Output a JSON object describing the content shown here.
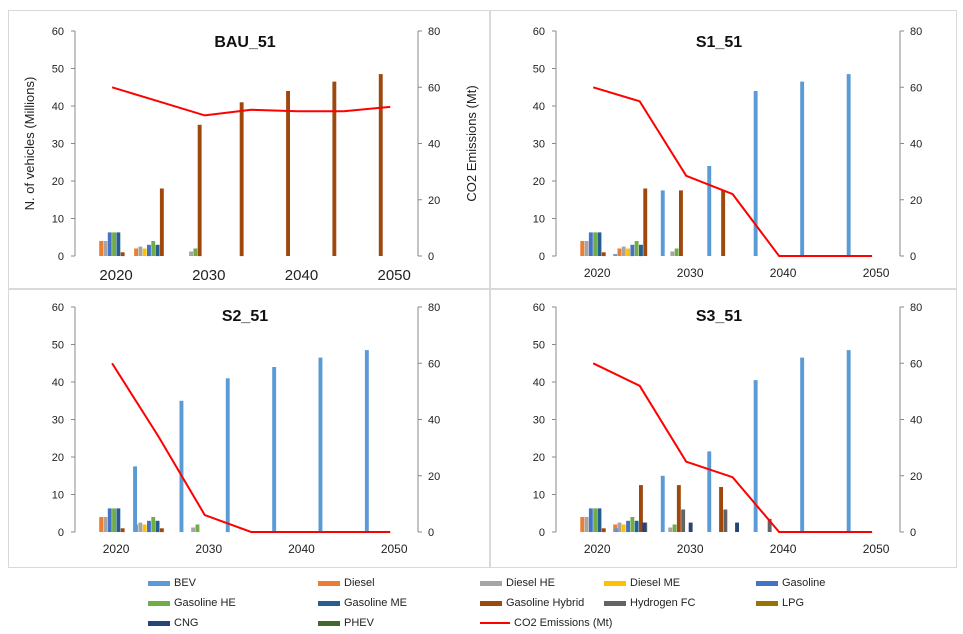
{
  "chart_data": [
    {
      "type": "bar",
      "title": "BAU_51",
      "ylabel": "N. of vehicles (Millions)",
      "y2label": "CO2 Emissions (Mt)",
      "ylim": [
        0,
        60
      ],
      "y2lim": [
        0,
        80
      ],
      "yticks": [
        "0",
        "10",
        "20",
        "30",
        "40",
        "50",
        "60"
      ],
      "y2ticks": [
        "0",
        "20",
        "40",
        "60",
        "80"
      ],
      "x_tick_labels": [
        "2020",
        "2030",
        "2040",
        "2050"
      ],
      "bars": [
        {
          "x": 2020,
          "series": "Diesel",
          "value": 4.0
        },
        {
          "x": 2020,
          "series": "Diesel HE",
          "value": 4.0
        },
        {
          "x": 2020,
          "series": "Gasoline",
          "value": 6.3
        },
        {
          "x": 2020,
          "series": "Gasoline HE",
          "value": 6.3
        },
        {
          "x": 2020,
          "series": "Gasoline ME",
          "value": 6.3
        },
        {
          "x": 2020,
          "series": "Gasoline Hybrid",
          "value": 1.0
        },
        {
          "x": 2024,
          "series": "Diesel",
          "value": 2.0
        },
        {
          "x": 2024,
          "series": "Diesel HE",
          "value": 2.5
        },
        {
          "x": 2024,
          "series": "Diesel ME",
          "value": 2.0
        },
        {
          "x": 2024,
          "series": "Gasoline",
          "value": 3.0
        },
        {
          "x": 2024,
          "series": "Gasoline HE",
          "value": 4.0
        },
        {
          "x": 2024,
          "series": "Gasoline ME",
          "value": 3.0
        },
        {
          "x": 2024,
          "series": "Gasoline Hybrid",
          "value": 18.0
        },
        {
          "x": 2029,
          "series": "Diesel HE",
          "value": 1.2
        },
        {
          "x": 2029,
          "series": "Gasoline HE",
          "value": 2.0
        },
        {
          "x": 2029,
          "series": "Gasoline Hybrid",
          "value": 35.0
        },
        {
          "x": 2034,
          "series": "Gasoline Hybrid",
          "value": 41.0
        },
        {
          "x": 2039,
          "series": "Gasoline Hybrid",
          "value": 44.0
        },
        {
          "x": 2044,
          "series": "Gasoline Hybrid",
          "value": 46.5
        },
        {
          "x": 2049,
          "series": "Gasoline Hybrid",
          "value": 48.5
        }
      ],
      "co2": [
        [
          2020,
          60
        ],
        [
          2025,
          55
        ],
        [
          2030,
          50
        ],
        [
          2035,
          52
        ],
        [
          2040,
          51.5
        ],
        [
          2045,
          51.5
        ],
        [
          2050,
          53
        ]
      ]
    },
    {
      "type": "bar",
      "title": "S1_51",
      "ylim": [
        0,
        60
      ],
      "y2lim": [
        0,
        80
      ],
      "yticks": [
        "0",
        "10",
        "20",
        "30",
        "40",
        "50",
        "60"
      ],
      "y2ticks": [
        "0",
        "20",
        "40",
        "60",
        "80"
      ],
      "x_tick_labels": [
        "2020",
        "2030",
        "2040",
        "2050"
      ],
      "bars": [
        {
          "x": 2020,
          "series": "Diesel",
          "value": 4.0
        },
        {
          "x": 2020,
          "series": "Diesel HE",
          "value": 4.0
        },
        {
          "x": 2020,
          "series": "Gasoline",
          "value": 6.3
        },
        {
          "x": 2020,
          "series": "Gasoline HE",
          "value": 6.3
        },
        {
          "x": 2020,
          "series": "Gasoline ME",
          "value": 6.3
        },
        {
          "x": 2020,
          "series": "Gasoline Hybrid",
          "value": 1.0
        },
        {
          "x": 2024,
          "series": "BEV",
          "value": 0.5
        },
        {
          "x": 2024,
          "series": "Diesel",
          "value": 2.0
        },
        {
          "x": 2024,
          "series": "Diesel HE",
          "value": 2.5
        },
        {
          "x": 2024,
          "series": "Diesel ME",
          "value": 2.0
        },
        {
          "x": 2024,
          "series": "Gasoline",
          "value": 3.0
        },
        {
          "x": 2024,
          "series": "Gasoline HE",
          "value": 4.0
        },
        {
          "x": 2024,
          "series": "Gasoline ME",
          "value": 3.0
        },
        {
          "x": 2024,
          "series": "Gasoline Hybrid",
          "value": 18.0
        },
        {
          "x": 2027.5,
          "series": "BEV",
          "value": 17.5
        },
        {
          "x": 2029,
          "series": "Diesel HE",
          "value": 1.2
        },
        {
          "x": 2029,
          "series": "Gasoline HE",
          "value": 2.0
        },
        {
          "x": 2029,
          "series": "Gasoline Hybrid",
          "value": 17.5
        },
        {
          "x": 2032.5,
          "series": "BEV",
          "value": 24.0
        },
        {
          "x": 2034,
          "series": "Gasoline Hybrid",
          "value": 17.5
        },
        {
          "x": 2037.5,
          "series": "BEV",
          "value": 44.0
        },
        {
          "x": 2042.5,
          "series": "BEV",
          "value": 46.5
        },
        {
          "x": 2047.5,
          "series": "BEV",
          "value": 48.5
        }
      ],
      "co2": [
        [
          2020,
          60
        ],
        [
          2025,
          55
        ],
        [
          2030,
          28.5
        ],
        [
          2035,
          22
        ],
        [
          2040,
          0
        ],
        [
          2045,
          0
        ],
        [
          2050,
          0
        ]
      ]
    },
    {
      "type": "bar",
      "title": "S2_51",
      "ylim": [
        0,
        60
      ],
      "y2lim": [
        0,
        80
      ],
      "yticks": [
        "0",
        "10",
        "20",
        "30",
        "40",
        "50",
        "60"
      ],
      "y2ticks": [
        "0",
        "20",
        "40",
        "60",
        "80"
      ],
      "x_tick_labels": [
        "2020",
        "2030",
        "2040",
        "2050"
      ],
      "bars": [
        {
          "x": 2020,
          "series": "Diesel",
          "value": 4.0
        },
        {
          "x": 2020,
          "series": "Diesel HE",
          "value": 4.0
        },
        {
          "x": 2020,
          "series": "Gasoline",
          "value": 6.3
        },
        {
          "x": 2020,
          "series": "Gasoline HE",
          "value": 6.3
        },
        {
          "x": 2020,
          "series": "Gasoline ME",
          "value": 6.3
        },
        {
          "x": 2020,
          "series": "Gasoline Hybrid",
          "value": 1.0
        },
        {
          "x": 2022.5,
          "series": "BEV",
          "value": 17.5
        },
        {
          "x": 2024,
          "series": "Diesel",
          "value": 2.0
        },
        {
          "x": 2024,
          "series": "Diesel HE",
          "value": 2.5
        },
        {
          "x": 2024,
          "series": "Diesel ME",
          "value": 2.0
        },
        {
          "x": 2024,
          "series": "Gasoline",
          "value": 3.0
        },
        {
          "x": 2024,
          "series": "Gasoline HE",
          "value": 4.0
        },
        {
          "x": 2024,
          "series": "Gasoline ME",
          "value": 3.0
        },
        {
          "x": 2024,
          "series": "Gasoline Hybrid",
          "value": 1.0
        },
        {
          "x": 2027.5,
          "series": "BEV",
          "value": 35.0
        },
        {
          "x": 2029,
          "series": "Diesel HE",
          "value": 1.2
        },
        {
          "x": 2029,
          "series": "Gasoline HE",
          "value": 2.0
        },
        {
          "x": 2032.5,
          "series": "BEV",
          "value": 41.0
        },
        {
          "x": 2037.5,
          "series": "BEV",
          "value": 44.0
        },
        {
          "x": 2042.5,
          "series": "BEV",
          "value": 46.5
        },
        {
          "x": 2047.5,
          "series": "BEV",
          "value": 48.5
        }
      ],
      "co2": [
        [
          2020,
          60
        ],
        [
          2025,
          34
        ],
        [
          2030,
          6
        ],
        [
          2035,
          0
        ],
        [
          2040,
          0
        ],
        [
          2045,
          0
        ],
        [
          2050,
          0
        ]
      ]
    },
    {
      "type": "bar",
      "title": "S3_51",
      "ylim": [
        0,
        60
      ],
      "y2lim": [
        0,
        80
      ],
      "yticks": [
        "0",
        "10",
        "20",
        "30",
        "40",
        "50",
        "60"
      ],
      "y2ticks": [
        "0",
        "20",
        "40",
        "60",
        "80"
      ],
      "x_tick_labels": [
        "2020",
        "2030",
        "2040",
        "2050"
      ],
      "bars": [
        {
          "x": 2020,
          "series": "Diesel",
          "value": 4.0
        },
        {
          "x": 2020,
          "series": "Diesel HE",
          "value": 4.0
        },
        {
          "x": 2020,
          "series": "Gasoline",
          "value": 6.3
        },
        {
          "x": 2020,
          "series": "Gasoline HE",
          "value": 6.3
        },
        {
          "x": 2020,
          "series": "Gasoline ME",
          "value": 6.3
        },
        {
          "x": 2020,
          "series": "Gasoline Hybrid",
          "value": 1.0
        },
        {
          "x": 2022.5,
          "series": "BEV",
          "value": 1.0
        },
        {
          "x": 2024,
          "series": "Diesel",
          "value": 2.0
        },
        {
          "x": 2024,
          "series": "Diesel HE",
          "value": 2.5
        },
        {
          "x": 2024,
          "series": "Diesel ME",
          "value": 2.0
        },
        {
          "x": 2024,
          "series": "Gasoline",
          "value": 3.0
        },
        {
          "x": 2024,
          "series": "Gasoline HE",
          "value": 4.0
        },
        {
          "x": 2024,
          "series": "Gasoline ME",
          "value": 3.0
        },
        {
          "x": 2024,
          "series": "Gasoline Hybrid",
          "value": 12.5
        },
        {
          "x": 2024,
          "series": "Hydrogen FC",
          "value": 2.5
        },
        {
          "x": 2025.5,
          "series": "CNG",
          "value": 2.5
        },
        {
          "x": 2027.5,
          "series": "BEV",
          "value": 15.0
        },
        {
          "x": 2029,
          "series": "Diesel HE",
          "value": 1.2
        },
        {
          "x": 2029,
          "series": "Gasoline HE",
          "value": 2.0
        },
        {
          "x": 2029,
          "series": "Gasoline Hybrid",
          "value": 12.5
        },
        {
          "x": 2029,
          "series": "Hydrogen FC",
          "value": 6.0
        },
        {
          "x": 2030.5,
          "series": "CNG",
          "value": 2.5
        },
        {
          "x": 2032.5,
          "series": "BEV",
          "value": 21.5
        },
        {
          "x": 2034,
          "series": "Gasoline Hybrid",
          "value": 12.0
        },
        {
          "x": 2034,
          "series": "Hydrogen FC",
          "value": 6.0
        },
        {
          "x": 2035.5,
          "series": "CNG",
          "value": 2.5
        },
        {
          "x": 2037.5,
          "series": "BEV",
          "value": 40.5
        },
        {
          "x": 2039,
          "series": "Hydrogen FC",
          "value": 3.5
        },
        {
          "x": 2042.5,
          "series": "BEV",
          "value": 46.5
        },
        {
          "x": 2047.5,
          "series": "BEV",
          "value": 48.5
        }
      ],
      "co2": [
        [
          2020,
          60
        ],
        [
          2025,
          52
        ],
        [
          2030,
          25
        ],
        [
          2035,
          19.5
        ],
        [
          2040,
          0
        ],
        [
          2045,
          0
        ],
        [
          2050,
          0
        ]
      ]
    }
  ],
  "colors": {
    "BEV": "#5b9bd5",
    "Diesel": "#ed7d31",
    "Diesel HE": "#a5a5a5",
    "Diesel ME": "#ffc000",
    "Gasoline": "#4472c4",
    "Gasoline HE": "#70ad47",
    "Gasoline ME": "#255e91",
    "Gasoline Hybrid": "#9e480e",
    "Hydrogen FC": "#636363",
    "LPG": "#997300",
    "CNG": "#264478",
    "PHEV": "#43682b",
    "CO2 Emissions (Mt)": "#ff0000"
  },
  "legend": {
    "items": [
      "BEV",
      "Diesel",
      "Diesel HE",
      "Diesel ME",
      "Gasoline",
      "Gasoline HE",
      "Gasoline ME",
      "Gasoline Hybrid",
      "Hydrogen FC",
      "LPG",
      "CNG",
      "PHEV",
      "CO2 Emissions (Mt)"
    ]
  }
}
